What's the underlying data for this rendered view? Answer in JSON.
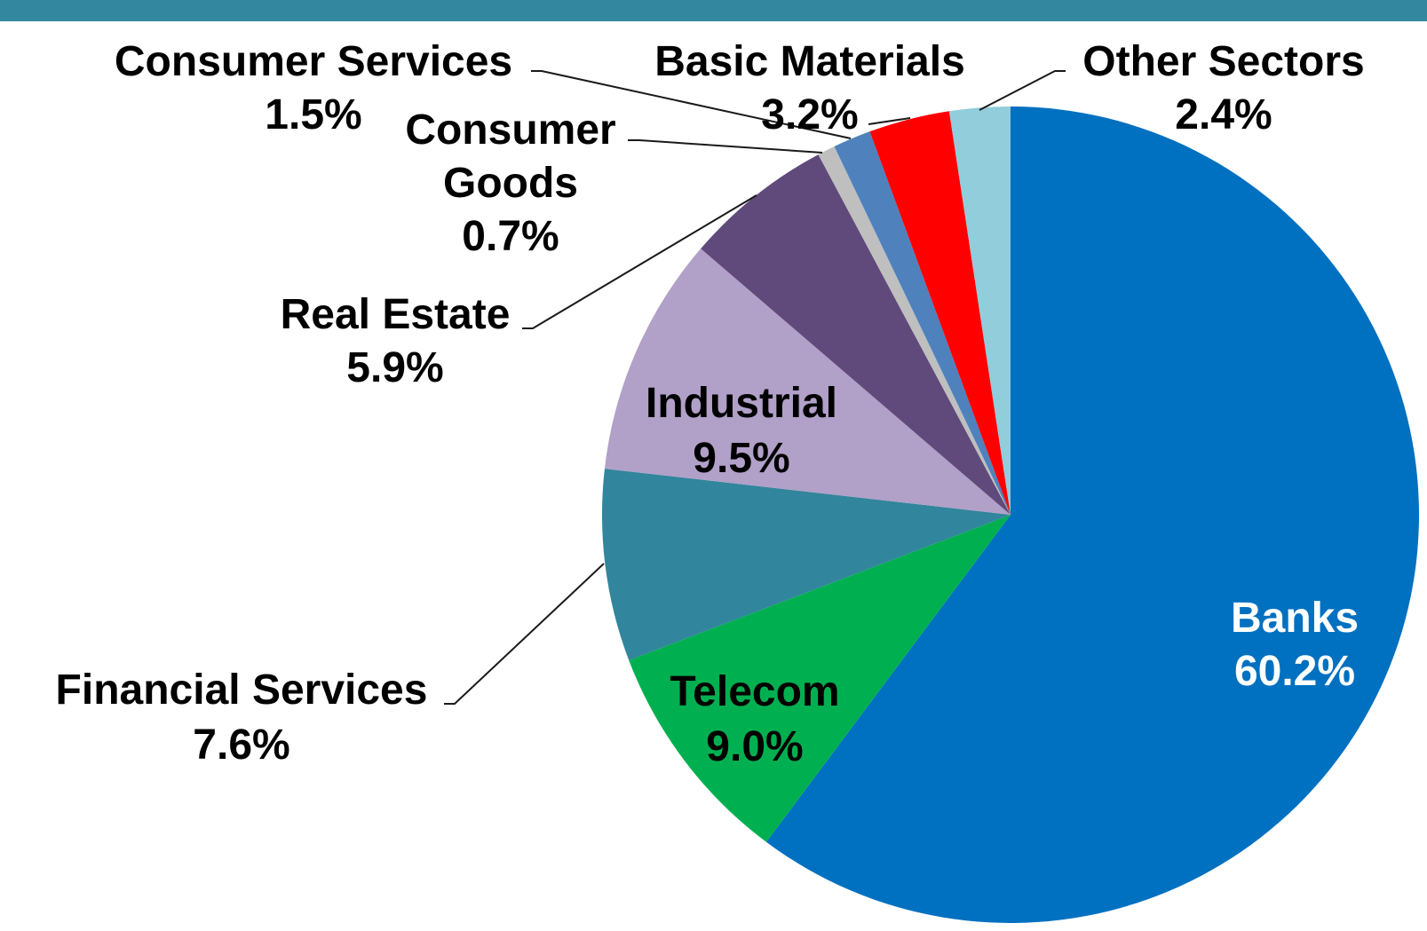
{
  "colors": {
    "top_bar": "#33879E",
    "label_dark": "#000000",
    "label_light": "#ffffff"
  },
  "chart_data": {
    "type": "pie",
    "title": "",
    "start_angle_deg": 0,
    "direction": "clockwise",
    "legend": "none",
    "slices": [
      {
        "name": "Banks",
        "value": 60.2,
        "display": "60.2%",
        "color": "#0070C0",
        "label_color": "#ffffff"
      },
      {
        "name": "Telecom",
        "value": 9.0,
        "display": "9.0%",
        "color": "#00B050",
        "label_color": "#000000"
      },
      {
        "name": "Financial Services",
        "value": 7.6,
        "display": "7.6%",
        "color": "#31859C",
        "label_color": "#000000"
      },
      {
        "name": "Industrial",
        "value": 9.5,
        "display": "9.5%",
        "color": "#B1A0C7",
        "label_color": "#000000"
      },
      {
        "name": "Real Estate",
        "value": 5.9,
        "display": "5.9%",
        "color": "#604A7B",
        "label_color": "#000000"
      },
      {
        "name": "Consumer Goods",
        "value": 0.7,
        "display": "0.7%",
        "color": "#BFBFBF",
        "label_color": "#000000"
      },
      {
        "name": "Consumer Services",
        "value": 1.5,
        "display": "1.5%",
        "color": "#4F81BD",
        "label_color": "#000000"
      },
      {
        "name": "Basic Materials",
        "value": 3.2,
        "display": "3.2%",
        "color": "#FF0000",
        "label_color": "#000000"
      },
      {
        "name": "Other Sectors",
        "value": 2.4,
        "display": "2.4%",
        "color": "#92CDDC",
        "label_color": "#000000"
      }
    ]
  }
}
